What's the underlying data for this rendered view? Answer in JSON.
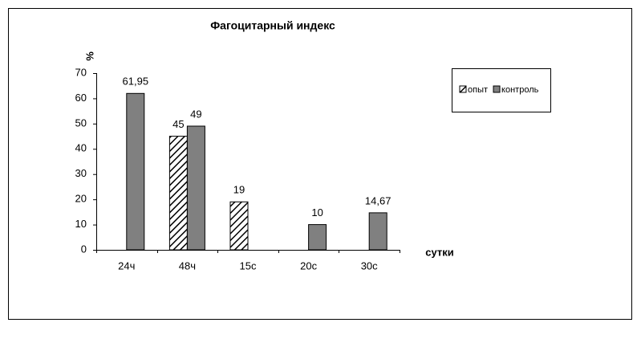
{
  "chart_data": {
    "type": "bar",
    "title": "Фагоцитарный индекс",
    "y_label": "%",
    "x_label": "сутки",
    "categories": [
      "24ч",
      "48ч",
      "15с",
      "20с",
      "30с"
    ],
    "series": [
      {
        "name": "опыт",
        "color": "#000000",
        "pattern": "hatch",
        "values": [
          null,
          45,
          19,
          null,
          null
        ],
        "value_labels": [
          null,
          "45",
          "19",
          null,
          null
        ]
      },
      {
        "name": "контроль",
        "color": "#808080",
        "pattern": "solid",
        "values": [
          61.95,
          49,
          null,
          10,
          14.67
        ],
        "value_labels": [
          "61,95",
          "49",
          null,
          "10",
          "14,67"
        ]
      }
    ],
    "ylim": [
      0,
      70
    ],
    "yticks": [
      0,
      10,
      20,
      30,
      40,
      50,
      60,
      70
    ],
    "grid": false,
    "legend": "right"
  }
}
